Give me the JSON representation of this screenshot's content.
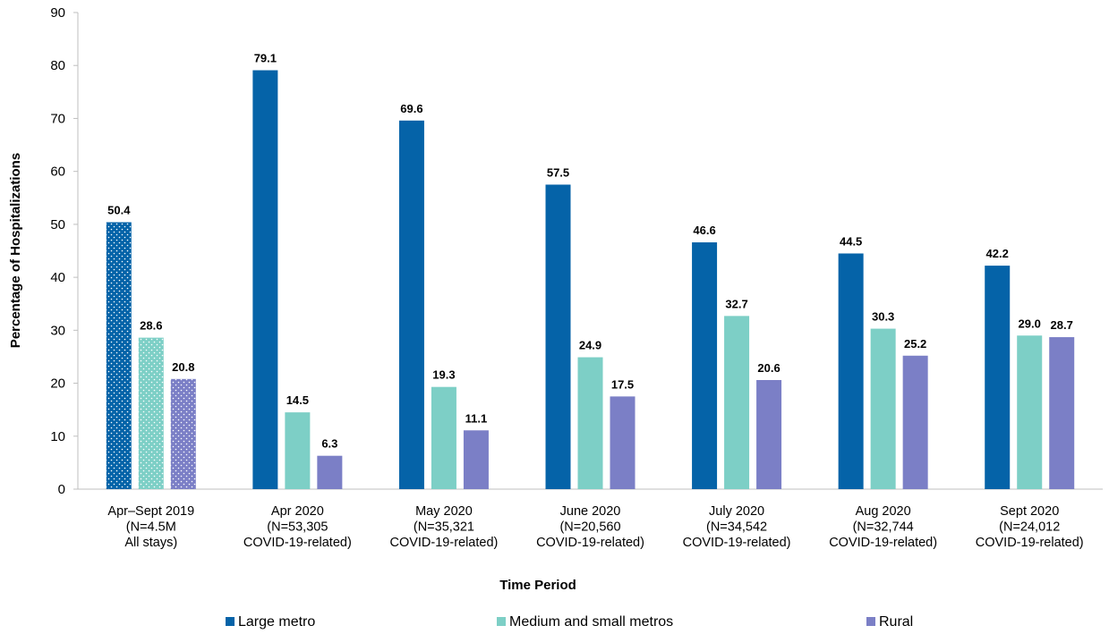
{
  "chart_data": {
    "type": "bar",
    "ylabel": "Percentage of Hospitalizations",
    "xlabel": "Time Period",
    "ylim": [
      0,
      90
    ],
    "yticks": [
      0,
      10,
      20,
      30,
      40,
      50,
      60,
      70,
      80,
      90
    ],
    "grid": false,
    "legend_position": "bottom",
    "categories": [
      [
        "Apr–Sept 2019",
        "(N=4.5M",
        "All stays)"
      ],
      [
        "Apr 2020",
        "(N=53,305",
        "COVID-19-related)"
      ],
      [
        "May 2020",
        "(N=35,321",
        "COVID-19-related)"
      ],
      [
        "June 2020",
        "(N=20,560",
        "COVID-19-related)"
      ],
      [
        "July 2020",
        "(N=34,542",
        "COVID-19-related)"
      ],
      [
        "Aug 2020",
        "(N=32,744",
        "COVID-19-related)"
      ],
      [
        "Sept 2020",
        "(N=24,012",
        "COVID-19-related)"
      ]
    ],
    "series": [
      {
        "name": "Large metro",
        "color": "#0563A8",
        "values": [
          50.4,
          79.1,
          69.6,
          57.5,
          46.6,
          44.5,
          42.2
        ]
      },
      {
        "name": "Medium and small metros",
        "color": "#7DCFC6",
        "values": [
          28.6,
          14.5,
          19.3,
          24.9,
          32.7,
          30.3,
          29.0
        ]
      },
      {
        "name": "Rural",
        "color": "#7B7FC6",
        "values": [
          20.8,
          6.3,
          11.1,
          17.5,
          20.6,
          25.2,
          28.7
        ]
      }
    ],
    "first_group_pattern": "dotted"
  }
}
